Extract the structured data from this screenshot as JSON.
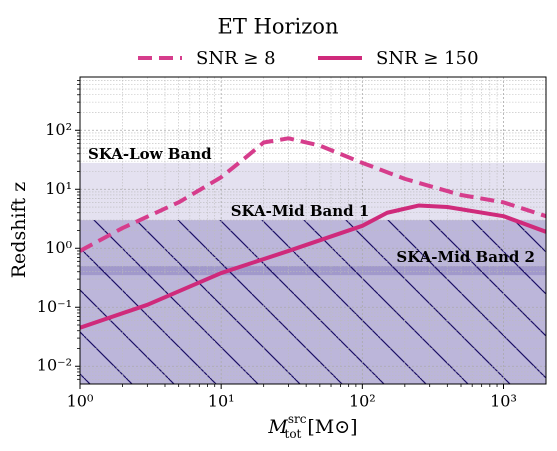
{
  "chart_data": {
    "type": "line",
    "title": "ET Horizon",
    "x_label": {
      "symbol": "M",
      "sub": "tot",
      "sup": "src",
      "unit": "[M⊙]"
    },
    "y_label": "Redshift z",
    "log_x": true,
    "log_y": true,
    "grid": true,
    "xlim": [
      1,
      2000
    ],
    "ylim": [
      0.005,
      800
    ],
    "xticks": [
      {
        "value": 1,
        "label": "10⁰"
      },
      {
        "value": 10,
        "label": "10¹"
      },
      {
        "value": 100,
        "label": "10²"
      },
      {
        "value": 1000,
        "label": "10³"
      }
    ],
    "yticks": [
      {
        "value": 0.01,
        "label": "10⁻²"
      },
      {
        "value": 0.1,
        "label": "10⁻¹"
      },
      {
        "value": 1,
        "label": "10⁰"
      },
      {
        "value": 10,
        "label": "10¹"
      },
      {
        "value": 100,
        "label": "10²"
      }
    ],
    "bands": [
      {
        "name": "SKA-Low Band",
        "range": [
          3,
          28
        ],
        "color": "#e4e1f0",
        "text_color": "#8c87bd"
      },
      {
        "name": "SKA-Mid Band 1",
        "range": [
          0.35,
          3
        ],
        "color": "#8f85c2",
        "text_color": "#3b2f85"
      },
      {
        "name": "SKA-Mid Band 2",
        "range": [
          0.005,
          0.5
        ],
        "color": "#8f85c2",
        "text_color": "#3b2f85"
      }
    ],
    "series": [
      {
        "name": "SNR ≥ 8",
        "color": "#d63d8c",
        "dashed": true,
        "x": [
          1,
          2,
          5,
          10,
          15,
          20,
          30,
          50,
          100,
          200,
          500,
          1000,
          2000
        ],
        "values": [
          0.9,
          2.2,
          6,
          16,
          35,
          62,
          73,
          55,
          28,
          15,
          8,
          6,
          3.5
        ]
      },
      {
        "name": "SNR ≥ 150",
        "color": "#cf2a7b",
        "dashed": false,
        "x": [
          1,
          3,
          10,
          30,
          100,
          150,
          250,
          400,
          1000,
          2000
        ],
        "values": [
          0.045,
          0.11,
          0.38,
          0.9,
          2.4,
          4,
          5.3,
          5,
          3.5,
          1.9
        ]
      }
    ]
  }
}
